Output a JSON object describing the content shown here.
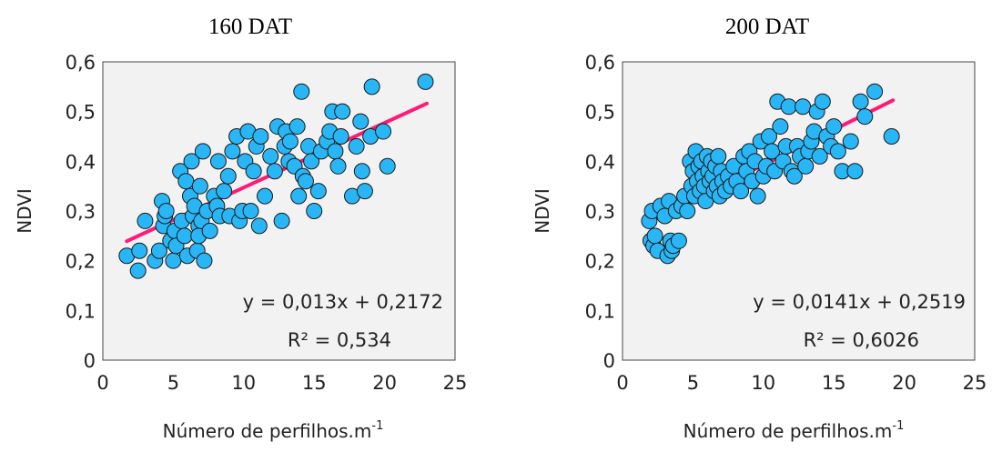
{
  "chart_data": [
    {
      "type": "scatter",
      "title": "160 DAT",
      "xlabel": "Número de perfilhos.m",
      "xlabel_sup": "-1",
      "ylabel": "NDVI",
      "xlim": [
        0,
        25
      ],
      "ylim": [
        0,
        0.6
      ],
      "xticks": [
        "0",
        "5",
        "10",
        "15",
        "20",
        "25"
      ],
      "yticks": [
        "0",
        "0,1",
        "0,2",
        "0,3",
        "0,4",
        "0,5",
        "0,6"
      ],
      "grid": false,
      "plot_background": "#f2f2f2",
      "marker_color": "#29b6f6",
      "marker_edge_color": "#1a1a1a",
      "trendline_color": "#ff1a75",
      "trendline": {
        "slope": 0.013,
        "intercept": 0.2172,
        "x_range": [
          1.7,
          23.0
        ]
      },
      "equation": "y = 0,013x + 0,2172",
      "r2": "R² = 0,534",
      "x": [
        1.7,
        2.5,
        2.6,
        3.0,
        3.7,
        4.0,
        4.2,
        4.3,
        4.4,
        4.5,
        4.8,
        5.0,
        5.1,
        5.2,
        5.5,
        5.6,
        5.8,
        5.9,
        6.0,
        6.2,
        6.3,
        6.4,
        6.5,
        6.7,
        6.8,
        6.8,
        6.9,
        7.0,
        7.1,
        7.2,
        7.4,
        7.6,
        7.9,
        8.1,
        8.2,
        8.3,
        8.6,
        8.9,
        9.0,
        9.2,
        9.5,
        9.7,
        9.9,
        10.1,
        10.3,
        10.5,
        10.7,
        10.9,
        11.1,
        11.2,
        11.5,
        11.9,
        12.2,
        12.4,
        12.7,
        12.9,
        13.0,
        13.2,
        13.3,
        13.6,
        13.8,
        13.9,
        14.1,
        14.2,
        14.4,
        14.6,
        14.8,
        15.0,
        15.3,
        15.5,
        15.9,
        16.1,
        16.3,
        16.5,
        16.7,
        16.9,
        17.0,
        17.7,
        18.0,
        18.3,
        18.4,
        18.6,
        19.0,
        19.1,
        19.9,
        20.2,
        22.9
      ],
      "y": [
        0.21,
        0.18,
        0.22,
        0.28,
        0.2,
        0.22,
        0.32,
        0.27,
        0.29,
        0.3,
        0.24,
        0.2,
        0.26,
        0.23,
        0.38,
        0.28,
        0.25,
        0.36,
        0.21,
        0.33,
        0.4,
        0.29,
        0.31,
        0.22,
        0.27,
        0.25,
        0.35,
        0.28,
        0.42,
        0.2,
        0.3,
        0.26,
        0.33,
        0.31,
        0.4,
        0.29,
        0.34,
        0.37,
        0.29,
        0.42,
        0.45,
        0.28,
        0.3,
        0.4,
        0.46,
        0.3,
        0.38,
        0.43,
        0.27,
        0.45,
        0.33,
        0.41,
        0.38,
        0.47,
        0.28,
        0.43,
        0.46,
        0.4,
        0.44,
        0.39,
        0.47,
        0.33,
        0.54,
        0.37,
        0.36,
        0.43,
        0.4,
        0.3,
        0.34,
        0.42,
        0.44,
        0.46,
        0.5,
        0.42,
        0.39,
        0.45,
        0.5,
        0.33,
        0.43,
        0.48,
        0.38,
        0.34,
        0.45,
        0.55,
        0.46,
        0.39,
        0.56
      ]
    },
    {
      "type": "scatter",
      "title": "200 DAT",
      "xlabel": "Número de perfilhos.m",
      "xlabel_sup": "-1",
      "ylabel": "NDVI",
      "xlim": [
        0,
        25
      ],
      "ylim": [
        0,
        0.6
      ],
      "xticks": [
        "0",
        "5",
        "10",
        "15",
        "20",
        "25"
      ],
      "yticks": [
        "0",
        "0,1",
        "0,2",
        "0,3",
        "0,4",
        "0,5",
        "0,6"
      ],
      "grid": false,
      "plot_background": "#f2f2f2",
      "marker_color": "#29b6f6",
      "marker_edge_color": "#1a1a1a",
      "trendline_color": "#ff1a75",
      "trendline": {
        "slope": 0.0141,
        "intercept": 0.2519,
        "x_range": [
          1.8,
          19.2
        ]
      },
      "equation": "y = 0,0141x + 0,2519",
      "r2": "R² = 0,6026",
      "x": [
        1.9,
        2.0,
        2.1,
        2.2,
        2.3,
        2.5,
        2.7,
        3.0,
        3.2,
        3.3,
        3.4,
        3.5,
        3.6,
        3.8,
        4.0,
        4.2,
        4.4,
        4.6,
        4.8,
        4.9,
        5.0,
        5.1,
        5.2,
        5.3,
        5.4,
        5.5,
        5.6,
        5.7,
        5.8,
        5.9,
        6.0,
        6.1,
        6.2,
        6.3,
        6.4,
        6.5,
        6.6,
        6.7,
        6.8,
        6.9,
        7.0,
        7.1,
        7.3,
        7.5,
        7.7,
        7.9,
        8.1,
        8.4,
        8.6,
        8.8,
        9.0,
        9.2,
        9.4,
        9.6,
        9.8,
        10.0,
        10.2,
        10.4,
        10.6,
        10.8,
        11.0,
        11.2,
        11.4,
        11.6,
        11.8,
        12.0,
        12.2,
        12.4,
        12.6,
        12.8,
        13.0,
        13.2,
        13.4,
        13.6,
        13.8,
        14.0,
        14.2,
        14.5,
        14.8,
        15.0,
        15.3,
        15.6,
        16.2,
        16.5,
        16.9,
        17.2,
        17.9,
        19.1
      ],
      "y": [
        0.28,
        0.24,
        0.3,
        0.23,
        0.25,
        0.22,
        0.31,
        0.29,
        0.21,
        0.32,
        0.24,
        0.22,
        0.23,
        0.3,
        0.24,
        0.31,
        0.33,
        0.3,
        0.4,
        0.35,
        0.38,
        0.33,
        0.42,
        0.36,
        0.39,
        0.34,
        0.4,
        0.37,
        0.35,
        0.32,
        0.41,
        0.38,
        0.36,
        0.4,
        0.37,
        0.34,
        0.39,
        0.35,
        0.41,
        0.33,
        0.38,
        0.36,
        0.34,
        0.37,
        0.35,
        0.39,
        0.36,
        0.34,
        0.41,
        0.38,
        0.42,
        0.36,
        0.4,
        0.33,
        0.44,
        0.37,
        0.39,
        0.45,
        0.42,
        0.38,
        0.52,
        0.47,
        0.4,
        0.43,
        0.51,
        0.38,
        0.37,
        0.43,
        0.41,
        0.51,
        0.39,
        0.42,
        0.44,
        0.46,
        0.5,
        0.41,
        0.52,
        0.45,
        0.43,
        0.47,
        0.42,
        0.38,
        0.44,
        0.38,
        0.52,
        0.49,
        0.54,
        0.45
      ]
    }
  ]
}
